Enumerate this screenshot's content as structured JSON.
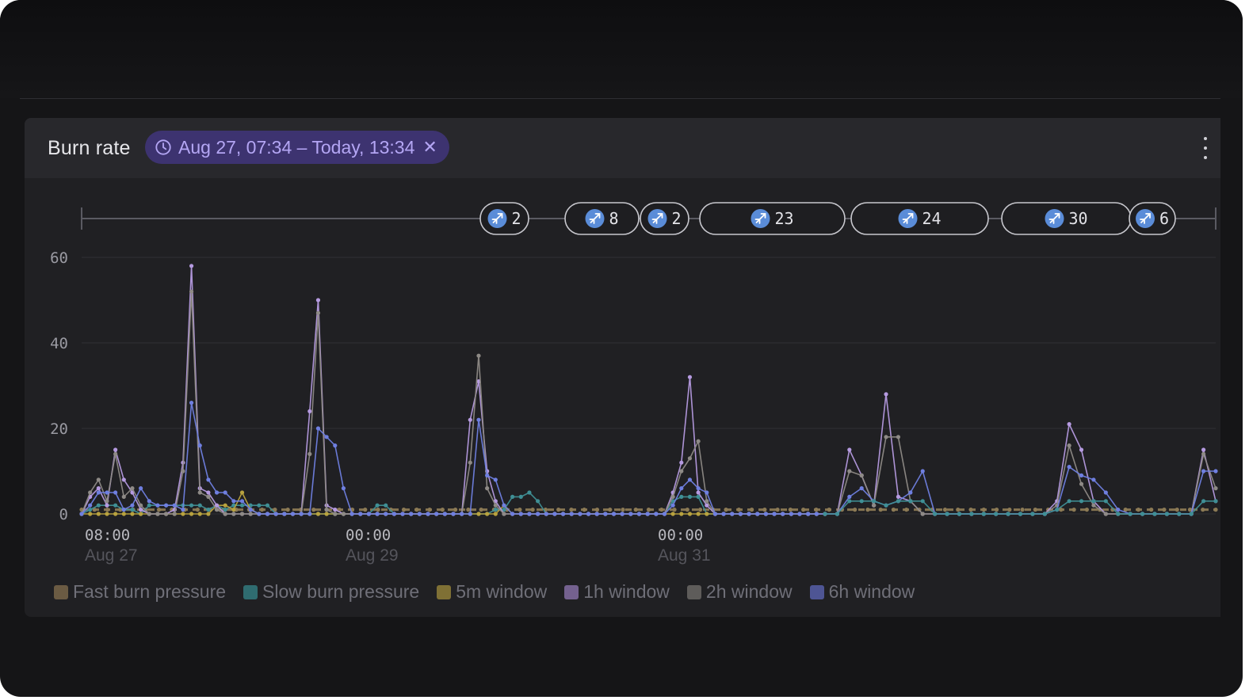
{
  "panel": {
    "title": "Burn rate",
    "time_range": "Aug 27, 07:34 – Today, 13:34",
    "clear_icon": "close-icon",
    "menu_icon": "kebab-menu-icon",
    "clock_icon": "clock-icon"
  },
  "colors": {
    "fast_burn": "#8c7a55",
    "slow_burn": "#3f8f95",
    "w5m": "#b8a23f",
    "w1h": "#b59ae0",
    "w2h": "#8e8a86",
    "w6h": "#6f7fe0",
    "deploy_icon": "#5a8cd8"
  },
  "legend": [
    {
      "label": "Fast burn pressure",
      "color": "#6b5b43"
    },
    {
      "label": "Slow burn pressure",
      "color": "#2f6c70"
    },
    {
      "label": "5m window",
      "color": "#7f7035"
    },
    {
      "label": "1h window",
      "color": "#74618f"
    },
    {
      "label": "2h window",
      "color": "#5e5c5a"
    },
    {
      "label": "6h window",
      "color": "#4e5594"
    }
  ],
  "deployments": [
    {
      "count": "2",
      "icon": "rocket-icon"
    },
    {
      "count": "8",
      "icon": "rocket-icon"
    },
    {
      "count": "2",
      "icon": "rocket-icon"
    },
    {
      "count": "23",
      "icon": "rocket-icon"
    },
    {
      "count": "24",
      "icon": "rocket-icon"
    },
    {
      "count": "30",
      "icon": "rocket-icon"
    },
    {
      "count": "6",
      "icon": "rocket-icon"
    }
  ],
  "chart_data": {
    "type": "line",
    "title": "Burn rate",
    "xlabel": "",
    "ylabel": "",
    "ylim": [
      0,
      60
    ],
    "yticks": [
      "0",
      "20",
      "40",
      "60"
    ],
    "xticks": [
      {
        "time": "08:00",
        "date": "Aug 27"
      },
      {
        "time": "00:00",
        "date": "Aug 29"
      },
      {
        "time": "00:00",
        "date": "Aug 31"
      }
    ],
    "x_start": "Aug 27, 07:34",
    "x_end": "Today, 13:34",
    "grid": true,
    "legend_position": "bottom",
    "series": [
      {
        "name": "Fast burn pressure",
        "color": "#8c7a55",
        "dashed": true,
        "values": [
          1,
          1,
          1,
          1,
          1,
          1,
          1,
          1,
          1,
          1,
          1,
          1,
          1,
          1,
          1,
          1,
          1,
          1,
          1,
          1,
          1,
          1,
          1,
          1,
          1,
          1,
          1,
          1,
          1,
          1,
          1,
          1,
          1,
          1,
          1,
          1,
          1,
          1,
          1,
          1,
          1,
          1,
          1,
          1,
          1,
          1,
          1,
          1,
          1,
          1,
          1,
          1,
          1,
          1,
          1,
          1,
          1,
          1,
          1,
          1,
          1,
          1,
          1,
          1,
          1,
          1,
          1,
          1,
          1,
          1,
          1,
          1,
          1,
          1,
          1,
          1,
          1,
          1,
          1,
          1,
          1,
          1,
          1,
          1,
          1,
          1,
          1,
          1,
          1
        ]
      },
      {
        "name": "Slow burn pressure",
        "color": "#3f8f95",
        "values": [
          0,
          1,
          2,
          2,
          2,
          1,
          1,
          0,
          2,
          2,
          2,
          2,
          2,
          2,
          2,
          1,
          2,
          1,
          2,
          2,
          2,
          2,
          2,
          0,
          0,
          0,
          0,
          0,
          0,
          0,
          0,
          0,
          0,
          0,
          0,
          2,
          2,
          0,
          0,
          0,
          0,
          0,
          0,
          0,
          0,
          0,
          0,
          0,
          0,
          1,
          1,
          4,
          4,
          5,
          3,
          0,
          0,
          0,
          0,
          0,
          0,
          0,
          0,
          0,
          0,
          0,
          0,
          0,
          0,
          0,
          3,
          4,
          4,
          4,
          0,
          0,
          0,
          0,
          0,
          0,
          0,
          0,
          0,
          0,
          0,
          0,
          0,
          0,
          0
        ]
      },
      {
        "name": "5m window",
        "color": "#b8a23f",
        "values": [
          0,
          0,
          0,
          0,
          0,
          0,
          0,
          0,
          0,
          0,
          0,
          0,
          0,
          0,
          0,
          0,
          2,
          2,
          1,
          5,
          1,
          0,
          0,
          0,
          0,
          0,
          0,
          0,
          0,
          0,
          0,
          0,
          0,
          0,
          0,
          0,
          0,
          0,
          0,
          0,
          0,
          0,
          0,
          0,
          0,
          0,
          0,
          0,
          0,
          0,
          2,
          0,
          0,
          0,
          0,
          0,
          0,
          0,
          0,
          0,
          0,
          0,
          0,
          0,
          0,
          0,
          0,
          0,
          0,
          0,
          0,
          0,
          0,
          0,
          0,
          0,
          0,
          0,
          0,
          0,
          0,
          0,
          0,
          0,
          0,
          0,
          0,
          0,
          0
        ]
      },
      {
        "name": "1h window",
        "color": "#b59ae0",
        "values": [
          0,
          4,
          6,
          2,
          15,
          8,
          5,
          1,
          0,
          0,
          0,
          1,
          12,
          58,
          6,
          5,
          2,
          0,
          0,
          0,
          0,
          0,
          0,
          0,
          0,
          0,
          0,
          24,
          50,
          2,
          1,
          0,
          0,
          0,
          0,
          0,
          0,
          0,
          0,
          0,
          0,
          0,
          0,
          0,
          0,
          0,
          22,
          31,
          10,
          3,
          0,
          0,
          0,
          0,
          0,
          0,
          0,
          0,
          0,
          0,
          0,
          0,
          0,
          0,
          0,
          0,
          0,
          0,
          0,
          0,
          5,
          12,
          32,
          5,
          2,
          0,
          0,
          0,
          0,
          0,
          0,
          0,
          0,
          0,
          0,
          0,
          0,
          0,
          0
        ]
      },
      {
        "name": "2h window",
        "color": "#8e8a86",
        "values": [
          0,
          5,
          8,
          3,
          14,
          4,
          6,
          2,
          0,
          0,
          0,
          0,
          10,
          52,
          5,
          4,
          1,
          0,
          0,
          0,
          0,
          0,
          0,
          0,
          0,
          0,
          0,
          14,
          47,
          1,
          0,
          0,
          0,
          0,
          0,
          0,
          0,
          0,
          0,
          0,
          0,
          0,
          0,
          0,
          0,
          0,
          12,
          37,
          6,
          2,
          0,
          0,
          0,
          0,
          0,
          0,
          0,
          0,
          0,
          0,
          0,
          0,
          0,
          0,
          0,
          0,
          0,
          0,
          0,
          0,
          4,
          10,
          13,
          17,
          3,
          0,
          0,
          0,
          0,
          0,
          0,
          0,
          0,
          0,
          0,
          0,
          0,
          0,
          0
        ]
      },
      {
        "name": "6h window",
        "color": "#6f7fe0",
        "values": [
          0,
          2,
          5,
          5,
          5,
          1,
          2,
          6,
          3,
          2,
          2,
          2,
          1,
          26,
          16,
          8,
          5,
          5,
          3,
          3,
          1,
          0,
          0,
          0,
          0,
          0,
          0,
          0,
          20,
          18,
          16,
          6,
          0,
          0,
          0,
          0,
          0,
          0,
          0,
          0,
          0,
          0,
          0,
          0,
          0,
          0,
          0,
          22,
          9,
          8,
          2,
          0,
          0,
          0,
          0,
          0,
          0,
          0,
          0,
          0,
          0,
          0,
          0,
          0,
          0,
          0,
          0,
          0,
          0,
          0,
          2,
          6,
          8,
          6,
          5,
          0,
          0,
          0,
          0,
          0,
          0,
          0,
          0,
          0,
          0,
          0,
          0,
          0,
          0
        ]
      }
    ],
    "series_tail": [
      {
        "name": "1h window",
        "values": [
          0,
          0,
          15,
          9,
          2,
          28,
          4,
          3,
          0,
          0,
          0,
          0,
          0,
          0,
          0,
          0,
          0,
          0,
          0,
          3,
          21,
          15,
          3,
          0,
          0,
          0,
          0,
          0,
          0,
          0,
          0,
          15,
          3
        ]
      },
      {
        "name": "2h window",
        "values": [
          0,
          0,
          10,
          9,
          2,
          18,
          18,
          3,
          0,
          0,
          0,
          0,
          0,
          0,
          0,
          0,
          0,
          0,
          0,
          2,
          16,
          7,
          2,
          0,
          0,
          0,
          0,
          0,
          0,
          0,
          0,
          14,
          6
        ]
      },
      {
        "name": "6h window",
        "values": [
          0,
          0,
          4,
          6,
          3,
          2,
          3,
          5,
          10,
          0,
          0,
          0,
          0,
          0,
          0,
          0,
          0,
          0,
          0,
          1,
          11,
          9,
          8,
          5,
          1,
          0,
          0,
          0,
          0,
          0,
          0,
          10,
          10
        ]
      },
      {
        "name": "Slow burn pressure",
        "values": [
          0,
          0,
          3,
          3,
          3,
          2,
          3,
          3,
          3,
          0,
          0,
          0,
          0,
          0,
          0,
          0,
          0,
          0,
          0,
          1,
          3,
          3,
          3,
          3,
          0,
          0,
          0,
          0,
          0,
          0,
          0,
          3,
          3
        ]
      }
    ]
  }
}
